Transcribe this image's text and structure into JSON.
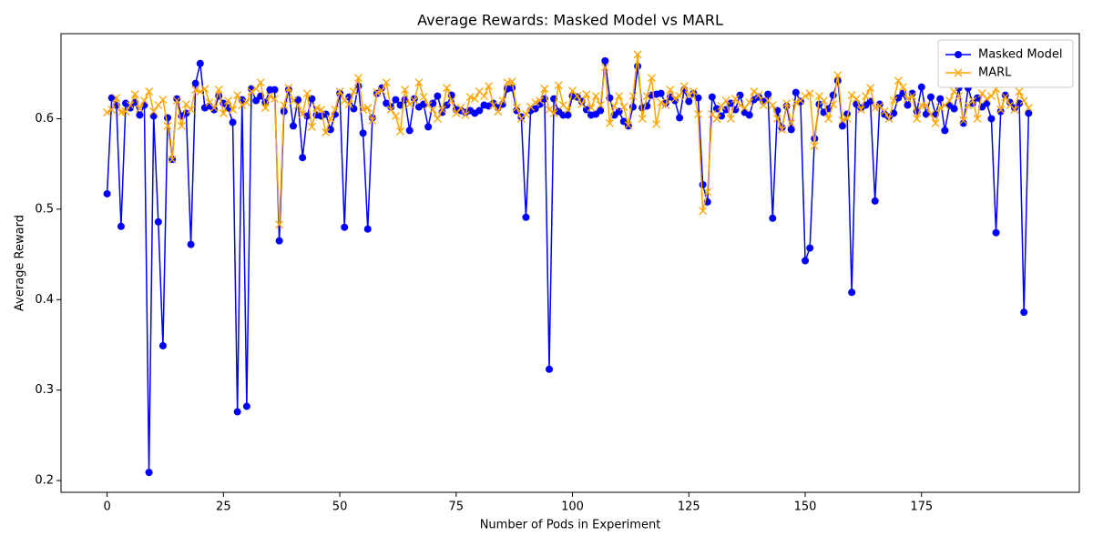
{
  "chart_data": {
    "type": "line",
    "title": "Average Rewards: Masked Model vs MARL",
    "xlabel": "Number of Pods in Experiment",
    "ylabel": "Average Reward",
    "x": [
      0,
      1,
      2,
      3,
      4,
      5,
      6,
      7,
      8,
      9,
      10,
      11,
      12,
      13,
      14,
      15,
      16,
      17,
      18,
      19,
      20,
      21,
      22,
      23,
      24,
      25,
      26,
      27,
      28,
      29,
      30,
      31,
      32,
      33,
      34,
      35,
      36,
      37,
      38,
      39,
      40,
      41,
      42,
      43,
      44,
      45,
      46,
      47,
      48,
      49,
      50,
      51,
      52,
      53,
      54,
      55,
      56,
      57,
      58,
      59,
      60,
      61,
      62,
      63,
      64,
      65,
      66,
      67,
      68,
      69,
      70,
      71,
      72,
      73,
      74,
      75,
      76,
      77,
      78,
      79,
      80,
      81,
      82,
      83,
      84,
      85,
      86,
      87,
      88,
      89,
      90,
      91,
      92,
      93,
      94,
      95,
      96,
      97,
      98,
      99,
      100,
      101,
      102,
      103,
      104,
      105,
      106,
      107,
      108,
      109,
      110,
      111,
      112,
      113,
      114,
      115,
      116,
      117,
      118,
      119,
      120,
      121,
      122,
      123,
      124,
      125,
      126,
      127,
      128,
      129,
      130,
      131,
      132,
      133,
      134,
      135,
      136,
      137,
      138,
      139,
      140,
      141,
      142,
      143,
      144,
      145,
      146,
      147,
      148,
      149,
      150,
      151,
      152,
      153,
      154,
      155,
      156,
      157,
      158,
      159,
      160,
      161,
      162,
      163,
      164,
      165,
      166,
      167,
      168,
      169,
      170,
      171,
      172,
      173,
      174,
      175,
      176,
      177,
      178,
      179,
      180,
      181,
      182,
      183,
      184,
      185,
      186,
      187,
      188,
      189,
      190,
      191,
      192,
      193,
      194,
      195,
      196,
      197,
      198
    ],
    "series": [
      {
        "name": "Masked Model",
        "color": "#0000ff",
        "marker": "o",
        "values": [
          0.517,
          0.623,
          0.615,
          0.481,
          0.617,
          0.612,
          0.618,
          0.604,
          0.615,
          0.209,
          0.603,
          0.486,
          0.349,
          0.601,
          0.555,
          0.622,
          0.603,
          0.606,
          0.461,
          0.639,
          0.661,
          0.612,
          0.614,
          0.61,
          0.625,
          0.617,
          0.612,
          0.596,
          0.276,
          0.621,
          0.282,
          0.633,
          0.62,
          0.625,
          0.618,
          0.632,
          0.632,
          0.465,
          0.608,
          0.632,
          0.592,
          0.621,
          0.557,
          0.603,
          0.622,
          0.604,
          0.603,
          0.605,
          0.588,
          0.605,
          0.628,
          0.48,
          0.624,
          0.611,
          0.636,
          0.584,
          0.478,
          0.601,
          0.628,
          0.634,
          0.617,
          0.613,
          0.621,
          0.615,
          0.621,
          0.587,
          0.622,
          0.613,
          0.616,
          0.591,
          0.617,
          0.625,
          0.607,
          0.615,
          0.626,
          0.61,
          0.609,
          0.607,
          0.609,
          0.606,
          0.609,
          0.615,
          0.614,
          0.617,
          0.612,
          0.616,
          0.633,
          0.634,
          0.609,
          0.602,
          0.491,
          0.609,
          0.611,
          0.616,
          0.622,
          0.323,
          0.622,
          0.608,
          0.604,
          0.604,
          0.625,
          0.624,
          0.619,
          0.61,
          0.604,
          0.605,
          0.609,
          0.664,
          0.623,
          0.604,
          0.608,
          0.597,
          0.592,
          0.613,
          0.658,
          0.612,
          0.614,
          0.626,
          0.627,
          0.628,
          0.617,
          0.624,
          0.62,
          0.601,
          0.632,
          0.619,
          0.628,
          0.623,
          0.527,
          0.508,
          0.624,
          0.611,
          0.603,
          0.61,
          0.617,
          0.61,
          0.626,
          0.607,
          0.604,
          0.621,
          0.624,
          0.619,
          0.627,
          0.49,
          0.609,
          0.59,
          0.614,
          0.588,
          0.629,
          0.619,
          0.443,
          0.457,
          0.578,
          0.616,
          0.607,
          0.611,
          0.626,
          0.642,
          0.592,
          0.605,
          0.408,
          0.616,
          0.612,
          0.615,
          0.619,
          0.509,
          0.616,
          0.605,
          0.602,
          0.606,
          0.623,
          0.628,
          0.615,
          0.628,
          0.608,
          0.635,
          0.605,
          0.624,
          0.605,
          0.622,
          0.587,
          0.615,
          0.611,
          0.634,
          0.595,
          0.634,
          0.617,
          0.623,
          0.613,
          0.617,
          0.6,
          0.474,
          0.608,
          0.626,
          0.618,
          0.612,
          0.617,
          0.386,
          0.606
        ]
      },
      {
        "name": "MARL",
        "color": "#ffa500",
        "marker": "x",
        "values": [
          0.607,
          0.61,
          0.623,
          0.607,
          0.608,
          0.615,
          0.627,
          0.611,
          0.62,
          0.63,
          0.608,
          0.615,
          0.621,
          0.592,
          0.555,
          0.62,
          0.592,
          0.616,
          0.61,
          0.632,
          0.63,
          0.633,
          0.618,
          0.612,
          0.632,
          0.606,
          0.62,
          0.61,
          0.626,
          0.615,
          0.618,
          0.63,
          0.633,
          0.64,
          0.612,
          0.625,
          0.622,
          0.483,
          0.615,
          0.634,
          0.62,
          0.615,
          0.605,
          0.628,
          0.591,
          0.612,
          0.61,
          0.585,
          0.6,
          0.61,
          0.63,
          0.62,
          0.616,
          0.63,
          0.645,
          0.61,
          0.612,
          0.598,
          0.629,
          0.631,
          0.64,
          0.61,
          0.603,
          0.586,
          0.632,
          0.616,
          0.62,
          0.64,
          0.624,
          0.615,
          0.61,
          0.6,
          0.61,
          0.634,
          0.62,
          0.606,
          0.612,
          0.604,
          0.624,
          0.622,
          0.63,
          0.625,
          0.636,
          0.615,
          0.608,
          0.62,
          0.64,
          0.641,
          0.612,
          0.6,
          0.605,
          0.613,
          0.618,
          0.62,
          0.633,
          0.61,
          0.606,
          0.637,
          0.615,
          0.61,
          0.631,
          0.625,
          0.616,
          0.627,
          0.612,
          0.625,
          0.615,
          0.657,
          0.595,
          0.614,
          0.625,
          0.613,
          0.593,
          0.625,
          0.671,
          0.6,
          0.625,
          0.645,
          0.594,
          0.618,
          0.615,
          0.632,
          0.622,
          0.625,
          0.636,
          0.626,
          0.63,
          0.605,
          0.498,
          0.519,
          0.605,
          0.6,
          0.614,
          0.62,
          0.6,
          0.622,
          0.615,
          0.612,
          0.618,
          0.63,
          0.626,
          0.615,
          0.62,
          0.615,
          0.6,
          0.588,
          0.617,
          0.595,
          0.618,
          0.62,
          0.625,
          0.628,
          0.57,
          0.625,
          0.62,
          0.6,
          0.616,
          0.648,
          0.598,
          0.6,
          0.626,
          0.622,
          0.61,
          0.625,
          0.634,
          0.612,
          0.614,
          0.608,
          0.6,
          0.62,
          0.642,
          0.635,
          0.622,
          0.625,
          0.6,
          0.615,
          0.615,
          0.605,
          0.595,
          0.612,
          0.615,
          0.62,
          0.63,
          0.625,
          0.598,
          0.615,
          0.62,
          0.6,
          0.628,
          0.622,
          0.625,
          0.633,
          0.61,
          0.624,
          0.615,
          0.61,
          0.63,
          0.62,
          0.612
        ]
      }
    ],
    "xlim": [
      -9.9,
      208.9
    ],
    "ylim": [
      0.187,
      0.694
    ],
    "xticks": [
      0,
      25,
      50,
      75,
      100,
      125,
      150,
      175
    ],
    "yticks": [
      0.2,
      0.3,
      0.4,
      0.5,
      0.6
    ],
    "legend": "upper right",
    "grid": false
  }
}
